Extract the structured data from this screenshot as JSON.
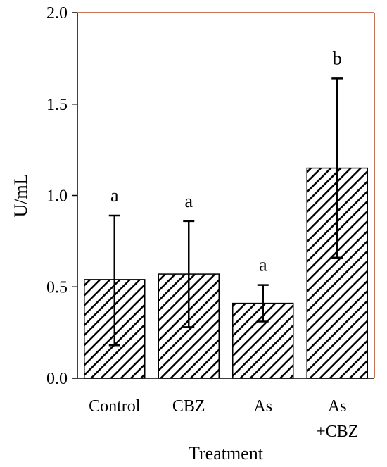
{
  "chart_data": {
    "type": "bar",
    "categories": [
      {
        "lines": [
          "Control"
        ]
      },
      {
        "lines": [
          "CBZ"
        ]
      },
      {
        "lines": [
          "As"
        ]
      },
      {
        "lines": [
          "As",
          "+CBZ"
        ]
      }
    ],
    "values": [
      0.54,
      0.57,
      0.41,
      1.15
    ],
    "error_low": [
      0.18,
      0.28,
      0.31,
      0.66
    ],
    "error_high": [
      0.89,
      0.86,
      0.51,
      1.64
    ],
    "significance_labels": [
      "a",
      "a",
      "a",
      "b"
    ],
    "xlabel": "Treatment",
    "ylabel": "U/mL",
    "ylim": [
      0.0,
      2.0
    ],
    "yticks": [
      "0.0",
      "0.5",
      "1.0",
      "1.5",
      "2.0"
    ],
    "grid": false,
    "bar_fill": "diagonal-hatch",
    "colors": {
      "frame_top_right": "#b5461e",
      "axis": "#000000",
      "bar_stroke": "#000000"
    }
  }
}
